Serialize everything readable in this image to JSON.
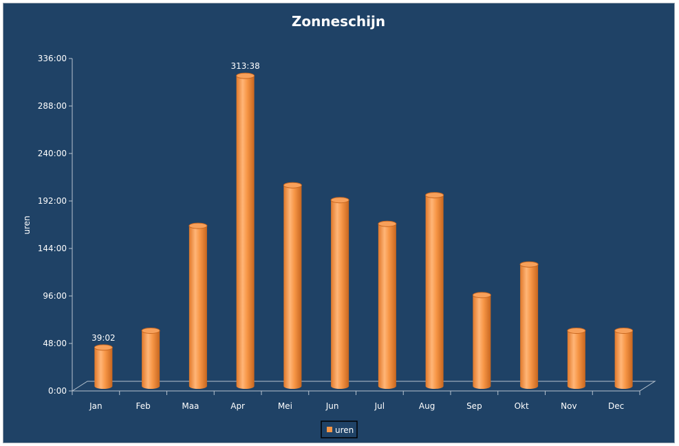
{
  "chart_data": {
    "type": "bar",
    "title": "Zonneschijn",
    "xlabel": "",
    "ylabel": "uren",
    "categories": [
      "Jan",
      "Feb",
      "Maa",
      "Apr",
      "Mei",
      "Jun",
      "Jul",
      "Aug",
      "Sep",
      "Okt",
      "Nov",
      "Dec"
    ],
    "series": [
      {
        "name": "uren",
        "values": [
          39.03,
          56,
          162,
          313.63,
          203,
          188,
          164,
          193,
          92,
          123,
          56,
          56
        ],
        "data_labels": [
          "39:02",
          "",
          "",
          "313:38",
          "",
          "",
          "",
          "",
          "",
          "",
          "",
          ""
        ]
      }
    ],
    "ylim": [
      0,
      336
    ],
    "yticks": [
      0,
      48,
      96,
      144,
      192,
      240,
      288,
      336
    ],
    "ytick_labels": [
      "0:00",
      "48:00",
      "96:00",
      "144:00",
      "192:00",
      "240:00",
      "288:00",
      "336:00"
    ],
    "grid": false,
    "legend_position": "bottom",
    "colors": {
      "background": "#1f4266",
      "bar": "#f79646",
      "axis": "#b8c4d0",
      "text": "#ffffff"
    }
  }
}
